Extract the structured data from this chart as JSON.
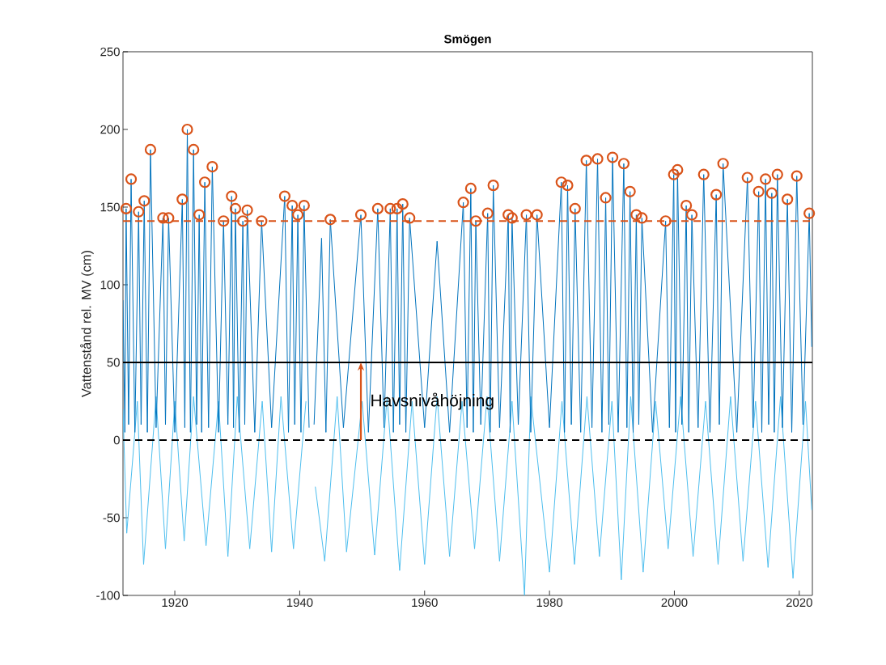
{
  "chart_data": {
    "type": "line",
    "title": "Smögen",
    "ylabel": "Vattenstånd rel. MV (cm)",
    "xlim": [
      1911.7,
      2022.1
    ],
    "xticks": [
      1920,
      1940,
      1960,
      1980,
      2000,
      2020
    ],
    "ylim": [
      -100,
      250
    ],
    "yticks": [
      -100,
      -50,
      0,
      50,
      100,
      150,
      200,
      250
    ],
    "grid": false,
    "series": [
      {
        "color": "#4dbeee",
        "marker": "none",
        "line_style": "solid",
        "x": [
          1911.7,
          1912.3,
          1914,
          1915,
          1917,
          1918.5,
          1920,
          1921.5,
          1923,
          1925,
          1927,
          1928.5,
          1930,
          1932,
          1934,
          1935.5,
          1937,
          1939,
          1941,
          1941.8,
          1942.5,
          1944,
          1946,
          1947.5,
          1950,
          1952,
          1954,
          1956,
          1958,
          1960,
          1962,
          1964,
          1966,
          1968,
          1970,
          1972,
          1974,
          1976,
          1977,
          1980,
          1982,
          1984,
          1986,
          1988,
          1990,
          1991.5,
          1993,
          1995,
          1997,
          1999,
          2001,
          2003,
          2005,
          2007,
          2009,
          2011,
          2013,
          2015,
          2017,
          2019,
          2021,
          2022
        ],
        "values": [
          20,
          -60,
          25,
          -80,
          28,
          -70,
          25,
          -65,
          28,
          -68,
          25,
          -75,
          28,
          -70,
          25,
          -72,
          28,
          -70,
          25,
          null,
          -30,
          -78,
          28,
          -72,
          25,
          -74,
          28,
          -84,
          25,
          -80,
          28,
          -75,
          25,
          -70,
          28,
          -78,
          25,
          -100,
          28,
          -85,
          25,
          -80,
          28,
          -75,
          25,
          -90,
          28,
          -85,
          25,
          -70,
          28,
          -75,
          25,
          -80,
          28,
          -78,
          25,
          -82,
          28,
          -89,
          25,
          -45
        ]
      },
      {
        "color": "#0072bd",
        "marker": "none",
        "line_style": "solid",
        "x": [
          1911.7,
          1912.0,
          1912.2,
          1912.6,
          1913.0,
          1913.6,
          1914.2,
          1914.6,
          1915.1,
          1915.6,
          1916.1,
          1917.0,
          1918.1,
          1918.5,
          1919.0,
          1920.0,
          1921.2,
          1921.6,
          1922.0,
          1922.5,
          1923.0,
          1923.5,
          1923.9,
          1924.3,
          1924.8,
          1925.4,
          1926.0,
          1927.0,
          1927.8,
          1928.5,
          1929.1,
          1929.4,
          1929.7,
          1930.3,
          1930.9,
          1931.2,
          1931.6,
          1932.8,
          1933.9,
          1935.5,
          1937.6,
          1938.2,
          1938.8,
          1939.2,
          1939.7,
          1940.2,
          1940.7,
          1941.5,
          1941.8,
          1942.3,
          1943.5,
          1944.2,
          1944.9,
          1947,
          1949.8,
          1951,
          1952.5,
          1953.5,
          1954.5,
          1955,
          1955.6,
          1956,
          1956.5,
          1957,
          1957.6,
          1960,
          1962,
          1964,
          1966.2,
          1966.8,
          1967.4,
          1967.8,
          1968.2,
          1969,
          1970.1,
          1970.5,
          1971.0,
          1972,
          1973.4,
          1973.7,
          1974.0,
          1975,
          1976.3,
          1977,
          1978.0,
          1980,
          1981.9,
          1982.4,
          1982.9,
          1983.5,
          1984.1,
          1985,
          1985.9,
          1986.8,
          1987.7,
          1988.4,
          1989.0,
          1989.5,
          1990.1,
          1991,
          1991.9,
          1992.4,
          1992.9,
          1993.4,
          1993.9,
          1994.3,
          1994.8,
          1996.5,
          1998.6,
          1999.2,
          1999.9,
          2000.2,
          2000.5,
          2001.2,
          2001.9,
          2002.3,
          2002.8,
          2003.8,
          2004.7,
          2005.7,
          2006.7,
          2007.2,
          2007.8,
          2010,
          2011.7,
          2012.6,
          2013.5,
          2014,
          2014.6,
          2015.1,
          2015.6,
          2016,
          2016.5,
          2017.3,
          2018.1,
          2018.8,
          2019.6,
          2020.6,
          2021.6,
          2022.0
        ],
        "values": [
          90,
          5,
          149,
          10,
          168,
          5,
          147,
          10,
          154,
          5,
          187,
          8,
          143,
          10,
          143,
          5,
          155,
          8,
          200,
          5,
          187,
          10,
          145,
          5,
          166,
          8,
          176,
          5,
          141,
          10,
          157,
          8,
          149,
          5,
          141,
          10,
          148,
          5,
          141,
          8,
          157,
          5,
          151,
          10,
          145,
          5,
          151,
          8,
          null,
          10,
          130,
          5,
          142,
          8,
          145,
          5,
          149,
          8,
          149,
          5,
          149,
          10,
          152,
          5,
          143,
          8,
          128,
          5,
          153,
          8,
          162,
          5,
          141,
          10,
          146,
          5,
          164,
          8,
          145,
          5,
          143,
          10,
          145,
          5,
          145,
          8,
          166,
          5,
          164,
          10,
          149,
          5,
          180,
          8,
          181,
          5,
          156,
          10,
          182,
          5,
          178,
          8,
          160,
          5,
          145,
          10,
          143,
          5,
          141,
          8,
          171,
          5,
          174,
          10,
          151,
          5,
          145,
          8,
          171,
          5,
          158,
          10,
          178,
          5,
          169,
          8,
          160,
          5,
          168,
          10,
          159,
          5,
          171,
          8,
          155,
          5,
          170,
          10,
          146,
          60
        ]
      },
      {
        "type": "scatter",
        "color": "#d95319",
        "marker": "circle",
        "x": [
          1912.2,
          1913.0,
          1914.2,
          1915.1,
          1916.1,
          1918.1,
          1919.0,
          1921.2,
          1922.0,
          1923.0,
          1923.9,
          1924.8,
          1926.0,
          1927.8,
          1929.1,
          1929.7,
          1930.9,
          1931.6,
          1933.9,
          1937.6,
          1938.8,
          1939.7,
          1940.7,
          1944.9,
          1949.8,
          1952.5,
          1954.5,
          1955.6,
          1956.5,
          1957.6,
          1966.2,
          1967.4,
          1968.2,
          1970.1,
          1971.0,
          1973.4,
          1974.0,
          1976.3,
          1978.0,
          1981.9,
          1982.9,
          1984.1,
          1985.9,
          1987.7,
          1989.0,
          1990.1,
          1991.9,
          1992.9,
          1993.9,
          1994.8,
          1998.6,
          1999.9,
          2000.5,
          2001.9,
          2002.8,
          2004.7,
          2006.7,
          2007.8,
          2011.7,
          2013.5,
          2014.6,
          2015.6,
          2016.5,
          2018.1,
          2019.6,
          2021.6
        ],
        "values": [
          149,
          168,
          147,
          154,
          187,
          143,
          143,
          155,
          200,
          187,
          145,
          166,
          176,
          141,
          157,
          149,
          141,
          148,
          141,
          157,
          151,
          145,
          151,
          142,
          145,
          149,
          149,
          149,
          152,
          143,
          153,
          162,
          141,
          146,
          164,
          145,
          143,
          145,
          145,
          166,
          164,
          149,
          180,
          181,
          156,
          182,
          178,
          160,
          145,
          143,
          141,
          171,
          174,
          151,
          145,
          171,
          158,
          178,
          169,
          160,
          168,
          159,
          171,
          155,
          170,
          146
        ]
      }
    ],
    "ref_lines": [
      {
        "axis": "y",
        "value": 50,
        "color": "#000000",
        "line_style": "solid"
      },
      {
        "axis": "y",
        "value": 0,
        "color": "#000000",
        "line_style": "dashed"
      },
      {
        "axis": "y",
        "value": 141,
        "color": "#d95319",
        "line_style": "dashed"
      }
    ],
    "annotations": [
      {
        "text": "Havsnivåhöjning",
        "x": 1949.8,
        "y": 25
      }
    ]
  }
}
